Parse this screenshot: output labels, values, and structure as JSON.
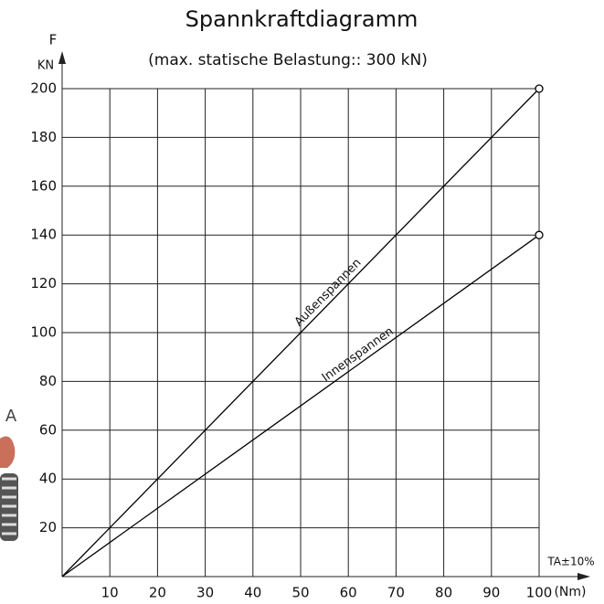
{
  "chart_data": {
    "type": "line",
    "title": "Spannkraftdiagramm",
    "subtitle": "(max. statische Belastung:: 300 kN)",
    "y_label": "F",
    "y_unit": "KN",
    "x_label": "TA±10%",
    "x_unit": "(Nm)",
    "side_label": "A",
    "x": [
      0,
      100
    ],
    "series": [
      {
        "name": "Außenspannen",
        "color": "#000000",
        "values": [
          0,
          200
        ]
      },
      {
        "name": "Innenspannen",
        "color": "#000000",
        "values": [
          0,
          140
        ]
      }
    ],
    "xlim": [
      0,
      100
    ],
    "ylim": [
      0,
      200
    ],
    "xticks": [
      10,
      20,
      30,
      40,
      50,
      60,
      70,
      80,
      90,
      100
    ],
    "yticks": [
      20,
      40,
      60,
      80,
      100,
      120,
      140,
      160,
      180,
      200
    ],
    "grid": true
  }
}
